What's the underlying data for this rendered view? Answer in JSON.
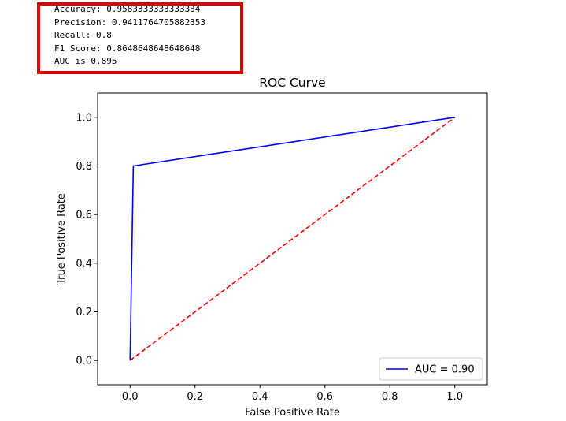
{
  "output": {
    "lines": [
      "Accuracy: 0.9583333333333334",
      "Precision: 0.9411764705882353",
      "Recall: 0.8",
      "F1 Score: 0.8648648648648648",
      "AUC is 0.895"
    ],
    "highlight_color": "#e00000"
  },
  "chart_data": {
    "type": "line",
    "title": "ROC Curve",
    "xlabel": "False Positive Rate",
    "ylabel": "True Positive Rate",
    "xlim": [
      -0.1,
      1.1
    ],
    "ylim": [
      -0.1,
      1.1
    ],
    "xticks": [
      0.0,
      0.2,
      0.4,
      0.6,
      0.8,
      1.0
    ],
    "yticks": [
      0.0,
      0.2,
      0.4,
      0.6,
      0.8,
      1.0
    ],
    "xtick_labels": [
      "0.0",
      "0.2",
      "0.4",
      "0.6",
      "0.8",
      "1.0"
    ],
    "ytick_labels": [
      "0.0",
      "0.2",
      "0.4",
      "0.6",
      "0.8",
      "1.0"
    ],
    "grid": false,
    "legend_position": "lower-right",
    "series": [
      {
        "name": "AUC = 0.90",
        "color": "#0000ff",
        "style": "solid",
        "x": [
          0.0,
          0.01,
          1.0
        ],
        "y": [
          0.0,
          0.8,
          1.0
        ]
      },
      {
        "color": "#ff0000",
        "style": "dashed",
        "x": [
          0.0,
          1.0
        ],
        "y": [
          0.0,
          1.0
        ]
      }
    ]
  }
}
